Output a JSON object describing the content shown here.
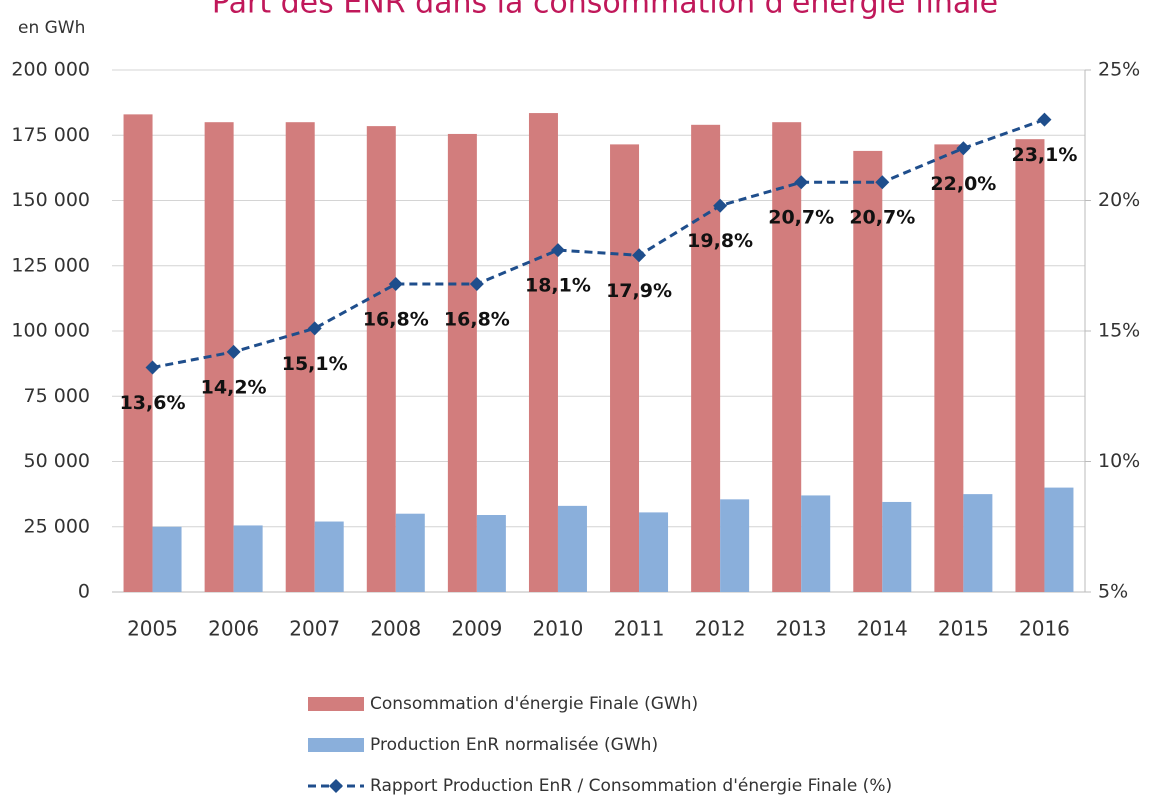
{
  "chart_data": {
    "type": "bar",
    "title": "Part des ENR dans la consommation d'énergie finale",
    "y_axis_label": "en GWh",
    "categories": [
      "2005",
      "2006",
      "2007",
      "2008",
      "2009",
      "2010",
      "2011",
      "2012",
      "2013",
      "2014",
      "2015",
      "2016"
    ],
    "series": [
      {
        "name": "Consommation d'énergie Finale (GWh)",
        "color": "#d27d7d",
        "type": "bar",
        "values": [
          183000,
          180000,
          180000,
          178500,
          175500,
          183500,
          171500,
          179000,
          180000,
          169000,
          171500,
          173500
        ]
      },
      {
        "name": "Production EnR normalisée (GWh)",
        "color": "#8aafdb",
        "type": "bar",
        "values": [
          25000,
          25500,
          27000,
          30000,
          29500,
          33000,
          30500,
          35500,
          37000,
          34500,
          37500,
          40000
        ]
      },
      {
        "name": "Rapport Production EnR / Consommation d'énergie Finale (%)",
        "color": "#1f4e8c",
        "type": "line",
        "axis": "y2",
        "values": [
          13.6,
          14.2,
          15.1,
          16.8,
          16.8,
          18.1,
          17.9,
          19.8,
          20.7,
          20.7,
          22.0,
          23.1
        ],
        "value_labels": [
          "13,6%",
          "14,2%",
          "15,1%",
          "16,8%",
          "16,8%",
          "18,1%",
          "17,9%",
          "19,8%",
          "20,7%",
          "20,7%",
          "22,0%",
          "23,1%"
        ]
      }
    ],
    "ylim": [
      0,
      200000
    ],
    "yticks": [
      {
        "value": 0,
        "label": "0"
      },
      {
        "value": 25000,
        "label": "25 000"
      },
      {
        "value": 50000,
        "label": "50 000"
      },
      {
        "value": 75000,
        "label": "75 000"
      },
      {
        "value": 100000,
        "label": "100 000"
      },
      {
        "value": 125000,
        "label": "125 000"
      },
      {
        "value": 150000,
        "label": "150 000"
      },
      {
        "value": 175000,
        "label": "175 000"
      },
      {
        "value": 200000,
        "label": "200 000"
      }
    ],
    "y2lim": [
      5,
      25
    ],
    "y2ticks": [
      {
        "value": 5,
        "label": "5%"
      },
      {
        "value": 10,
        "label": "10%"
      },
      {
        "value": 15,
        "label": "15%"
      },
      {
        "value": 20,
        "label": "20%"
      },
      {
        "value": 25,
        "label": "25%"
      }
    ],
    "grid": true,
    "legend": "bottom"
  }
}
